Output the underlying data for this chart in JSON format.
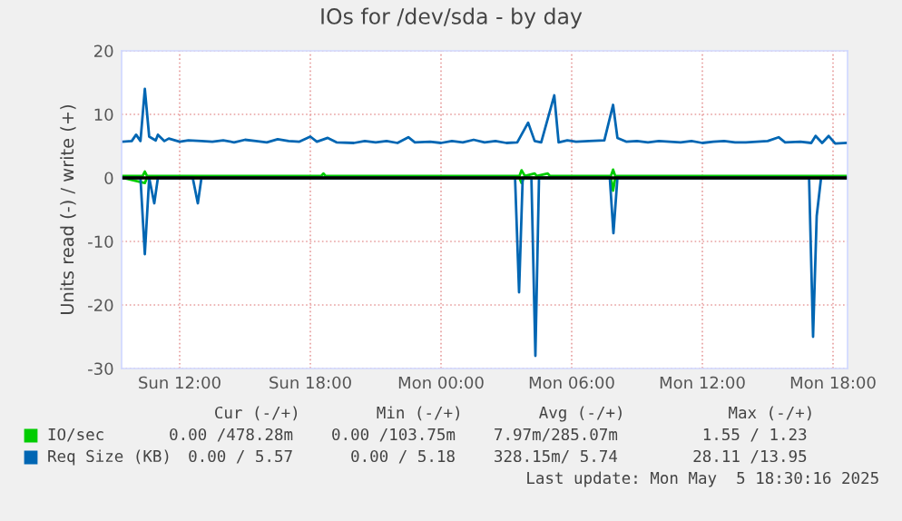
{
  "chart_data": {
    "type": "line",
    "title": "IOs for /dev/sda - by day",
    "ylabel": "Units read (-) / write (+)",
    "xlim": [
      "2025-05-04T09:20",
      "2025-05-05T18:40"
    ],
    "xticks": [
      {
        "value": "2025-05-04T12:00",
        "label": "Sun 12:00"
      },
      {
        "value": "2025-05-04T18:00",
        "label": "Sun 18:00"
      },
      {
        "value": "2025-05-05T00:00",
        "label": "Mon 00:00"
      },
      {
        "value": "2025-05-05T06:00",
        "label": "Mon 06:00"
      },
      {
        "value": "2025-05-05T12:00",
        "label": "Mon 12:00"
      },
      {
        "value": "2025-05-05T18:00",
        "label": "Mon 18:00"
      }
    ],
    "ylim": [
      -30,
      20
    ],
    "yticks": [
      -30,
      -20,
      -10,
      0,
      10,
      20
    ],
    "grid": true,
    "legend": "bottom",
    "ref_lines": [
      {
        "axis": "y",
        "value": 0,
        "color": "#000000"
      }
    ],
    "series": [
      {
        "color": "#00cc00",
        "x": [
          "2025-05-04T09:24",
          "2025-05-04T10:24",
          "2025-05-04T10:30",
          "2025-05-05T03:36",
          "2025-05-05T03:42",
          "2025-05-05T03:48",
          "2025-05-05T07:48",
          "2025-05-05T07:54",
          "2025-05-05T08:00",
          "2025-05-05T18:36"
        ],
        "values": [
          0,
          -0.8,
          0,
          0,
          -0.8,
          0,
          0,
          -2,
          0,
          0
        ]
      },
      {
        "name": "IO/sec",
        "color": "#00cc00",
        "x": [
          "2025-05-04T09:24",
          "2025-05-04T10:18",
          "2025-05-04T10:24",
          "2025-05-04T10:30",
          "2025-05-04T18:30",
          "2025-05-04T18:36",
          "2025-05-04T18:42",
          "2025-05-05T03:36",
          "2025-05-05T03:42",
          "2025-05-05T03:51",
          "2025-05-05T04:18",
          "2025-05-05T04:24",
          "2025-05-05T04:54",
          "2025-05-05T05:00",
          "2025-05-05T07:48",
          "2025-05-05T07:54",
          "2025-05-05T08:00",
          "2025-05-05T18:36"
        ],
        "values": [
          0.3,
          0.3,
          1.0,
          0.3,
          0.3,
          0.7,
          0.3,
          0.3,
          1.2,
          0.3,
          0.7,
          0.3,
          0.7,
          0.3,
          0.3,
          1.3,
          0.3,
          0.3
        ]
      },
      {
        "color": "#0066b3",
        "x": [
          "2025-05-04T09:24",
          "2025-05-04T10:12",
          "2025-05-04T10:24",
          "2025-05-04T10:36",
          "2025-05-04T10:50",
          "2025-05-04T11:00",
          "2025-05-04T12:36",
          "2025-05-04T12:50",
          "2025-05-04T13:00",
          "2025-05-05T03:24",
          "2025-05-05T03:35",
          "2025-05-05T03:45",
          "2025-05-05T04:09",
          "2025-05-05T04:20",
          "2025-05-05T04:30",
          "2025-05-05T07:45",
          "2025-05-05T07:55",
          "2025-05-05T08:06",
          "2025-05-05T16:54",
          "2025-05-05T17:05",
          "2025-05-05T17:15",
          "2025-05-05T17:27",
          "2025-05-05T18:36"
        ],
        "values": [
          0,
          0,
          -12,
          0,
          -4,
          0,
          0,
          -4,
          0,
          0,
          -18,
          0,
          0,
          -28,
          0,
          0,
          -8.7,
          0,
          0,
          -25,
          -6,
          0,
          0
        ]
      },
      {
        "name": "Req Size (KB)",
        "color": "#0066b3",
        "x": [
          "2025-05-04T09:24",
          "2025-05-04T09:48",
          "2025-05-04T10:00",
          "2025-05-04T10:12",
          "2025-05-04T10:24",
          "2025-05-04T10:36",
          "2025-05-04T10:54",
          "2025-05-04T11:00",
          "2025-05-04T11:18",
          "2025-05-04T11:30",
          "2025-05-04T12:00",
          "2025-05-04T12:24",
          "2025-05-04T13:00",
          "2025-05-04T13:30",
          "2025-05-04T14:00",
          "2025-05-04T14:30",
          "2025-05-04T15:00",
          "2025-05-04T15:30",
          "2025-05-04T16:00",
          "2025-05-04T16:30",
          "2025-05-04T17:00",
          "2025-05-04T17:30",
          "2025-05-04T18:00",
          "2025-05-04T18:18",
          "2025-05-04T18:48",
          "2025-05-04T19:12",
          "2025-05-04T20:00",
          "2025-05-04T20:30",
          "2025-05-04T21:00",
          "2025-05-04T21:30",
          "2025-05-04T22:00",
          "2025-05-04T22:30",
          "2025-05-04T22:48",
          "2025-05-04T23:30",
          "2025-05-05T00:00",
          "2025-05-05T00:30",
          "2025-05-05T01:00",
          "2025-05-05T01:30",
          "2025-05-05T02:00",
          "2025-05-05T02:30",
          "2025-05-05T03:00",
          "2025-05-05T03:30",
          "2025-05-05T04:00",
          "2025-05-05T04:18",
          "2025-05-05T04:36",
          "2025-05-05T05:12",
          "2025-05-05T05:24",
          "2025-05-05T05:48",
          "2025-05-05T06:12",
          "2025-05-05T06:48",
          "2025-05-05T07:30",
          "2025-05-05T07:54",
          "2025-05-05T08:06",
          "2025-05-05T08:30",
          "2025-05-05T09:00",
          "2025-05-05T09:30",
          "2025-05-05T10:00",
          "2025-05-05T10:30",
          "2025-05-05T11:00",
          "2025-05-05T11:30",
          "2025-05-05T12:00",
          "2025-05-05T12:30",
          "2025-05-05T13:00",
          "2025-05-05T13:30",
          "2025-05-05T14:00",
          "2025-05-05T14:30",
          "2025-05-05T15:00",
          "2025-05-05T15:30",
          "2025-05-05T15:48",
          "2025-05-05T16:30",
          "2025-05-05T17:00",
          "2025-05-05T17:12",
          "2025-05-05T17:30",
          "2025-05-05T17:48",
          "2025-05-05T18:06",
          "2025-05-05T18:36"
        ],
        "values": [
          5.7,
          5.8,
          6.8,
          5.8,
          14.0,
          6.5,
          5.9,
          6.8,
          5.8,
          6.2,
          5.7,
          5.9,
          5.8,
          5.7,
          5.9,
          5.6,
          6.0,
          5.8,
          5.6,
          6.1,
          5.8,
          5.7,
          6.5,
          5.7,
          6.3,
          5.6,
          5.5,
          5.8,
          5.6,
          5.8,
          5.5,
          6.4,
          5.6,
          5.7,
          5.5,
          5.8,
          5.6,
          6.0,
          5.6,
          5.8,
          5.5,
          5.6,
          8.7,
          5.8,
          5.6,
          13.0,
          5.6,
          5.9,
          5.7,
          5.8,
          5.9,
          11.5,
          6.3,
          5.7,
          5.8,
          5.6,
          5.8,
          5.7,
          5.6,
          5.8,
          5.5,
          5.7,
          5.8,
          5.6,
          5.6,
          5.7,
          5.8,
          6.4,
          5.6,
          5.7,
          5.5,
          6.6,
          5.5,
          6.6,
          5.4,
          5.5
        ]
      }
    ],
    "annotations": [
      "Cur (-/+)",
      "Min (-/+)",
      "Avg (-/+)",
      "Max (-/+)",
      "0.00 /478.28m",
      "0.00 /103.75m",
      "7.97m/285.07m",
      "1.55 / 1.23",
      "0.00 / 5.57",
      "0.00 / 5.18",
      "328.15m/ 5.74",
      "28.11 /13.95",
      "Last update: Mon May  5 18:30:16 2025"
    ]
  }
}
